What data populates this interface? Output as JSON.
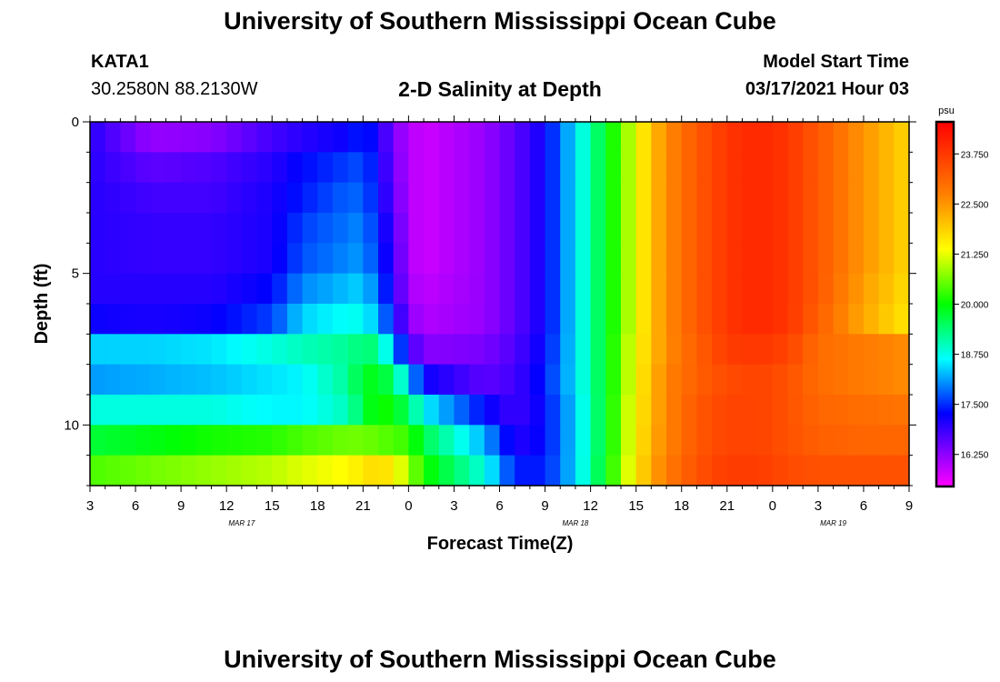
{
  "page": {
    "title_top": "University of Southern Mississippi Ocean Cube",
    "title_bottom": "University of Southern Mississippi Ocean Cube",
    "station_id": "KATA1",
    "station_coords": "30.2580N 88.2130W",
    "chart_title": "2-D Salinity at Depth",
    "model_start_label": "Model Start Time",
    "model_start_value": "03/17/2021 Hour 03"
  },
  "chart_data": {
    "type": "heatmap",
    "title": "2-D Salinity at Depth",
    "xlabel": "Forecast Time(Z)",
    "ylabel": "Depth (ft)",
    "x_ticks": [
      "3",
      "6",
      "9",
      "12",
      "15",
      "18",
      "21",
      "0",
      "3",
      "6",
      "9",
      "12",
      "15",
      "18",
      "21",
      "0",
      "3",
      "6",
      "9"
    ],
    "x_day_labels": [
      {
        "label": "MAR 17",
        "hour_index": 10
      },
      {
        "label": "MAR 18",
        "hour_index": 32
      },
      {
        "label": "MAR 19",
        "hour_index": 49
      }
    ],
    "x_hours_range": [
      0,
      54
    ],
    "y_ticks": [
      0,
      5,
      10
    ],
    "ylim": [
      0,
      12
    ],
    "colorbar": {
      "unit": "psu",
      "min": 15.45,
      "max": 24.55,
      "tick_values": [
        16.25,
        17.5,
        18.75,
        20.0,
        21.25,
        22.5,
        23.75
      ],
      "tick_labels": [
        "16.250",
        "17.500",
        "18.750",
        "20.000",
        "21.250",
        "22.500",
        "23.750"
      ]
    },
    "depth_levels_ft": [
      0.5,
      1.5,
      2.5,
      3.5,
      4.5,
      5.5,
      6.5,
      7.5,
      8.5,
      9.5,
      10.5,
      11.5
    ],
    "time_hours": [
      0,
      4,
      8,
      12,
      14,
      17,
      18,
      19,
      20,
      21,
      22,
      26,
      28,
      30,
      32,
      34,
      35,
      36,
      37,
      38,
      40,
      42,
      44,
      46,
      48,
      51,
      54
    ],
    "salinity_psu": [
      [
        17.0,
        16.2,
        16.3,
        16.8,
        17.0,
        17.2,
        17.5,
        17.1,
        16.4,
        16.0,
        15.8,
        16.2,
        16.6,
        17.2,
        18.5,
        19.8,
        20.5,
        21.3,
        22.0,
        22.6,
        23.3,
        23.8,
        24.0,
        23.8,
        23.3,
        22.5,
        21.8
      ],
      [
        17.0,
        16.6,
        16.7,
        17.0,
        17.3,
        17.6,
        17.7,
        17.2,
        16.5,
        16.0,
        15.8,
        16.2,
        16.6,
        17.2,
        18.5,
        19.8,
        20.5,
        21.3,
        22.0,
        22.6,
        23.3,
        23.8,
        24.0,
        23.8,
        23.3,
        22.5,
        21.8
      ],
      [
        17.0,
        16.8,
        16.8,
        17.1,
        17.4,
        17.8,
        17.8,
        17.3,
        16.6,
        16.0,
        15.8,
        16.2,
        16.6,
        17.2,
        18.5,
        19.8,
        20.5,
        21.3,
        22.0,
        22.6,
        23.3,
        23.8,
        24.0,
        23.8,
        23.3,
        22.5,
        21.8
      ],
      [
        17.0,
        16.9,
        16.9,
        17.1,
        17.6,
        17.9,
        18.0,
        17.4,
        16.8,
        16.0,
        15.8,
        16.2,
        16.6,
        17.2,
        18.5,
        19.8,
        20.5,
        21.3,
        22.0,
        22.6,
        23.3,
        23.8,
        24.0,
        23.8,
        23.3,
        22.5,
        21.8
      ],
      [
        17.0,
        16.9,
        16.9,
        17.1,
        17.7,
        18.0,
        18.1,
        17.5,
        16.9,
        16.0,
        15.8,
        16.2,
        16.6,
        17.2,
        18.5,
        19.8,
        20.5,
        21.3,
        22.0,
        22.6,
        23.3,
        23.8,
        24.0,
        23.8,
        23.3,
        22.5,
        21.8
      ],
      [
        17.0,
        17.0,
        17.0,
        17.3,
        18.0,
        18.3,
        18.4,
        17.8,
        17.0,
        16.1,
        15.9,
        16.2,
        16.6,
        17.2,
        18.5,
        19.8,
        20.5,
        21.3,
        22.0,
        22.6,
        23.3,
        23.8,
        24.0,
        23.8,
        23.3,
        22.4,
        21.7
      ],
      [
        17.2,
        17.1,
        17.2,
        17.6,
        18.4,
        18.7,
        18.7,
        18.2,
        17.3,
        16.3,
        16.0,
        16.2,
        16.6,
        17.2,
        18.5,
        19.8,
        20.5,
        21.3,
        22.0,
        22.6,
        23.3,
        23.8,
        24.0,
        23.8,
        23.2,
        22.3,
        21.6
      ],
      [
        18.4,
        18.4,
        18.5,
        18.8,
        19.0,
        19.2,
        19.4,
        19.3,
        18.2,
        16.9,
        16.3,
        16.4,
        16.7,
        17.3,
        18.5,
        19.8,
        20.6,
        21.4,
        22.0,
        22.6,
        23.2,
        23.7,
        23.8,
        23.6,
        23.0,
        22.8,
        22.6
      ],
      [
        18.1,
        18.2,
        18.3,
        18.5,
        18.6,
        19.2,
        19.8,
        19.9,
        19.4,
        18.4,
        17.2,
        16.6,
        16.8,
        17.4,
        18.5,
        19.8,
        20.6,
        21.4,
        22.1,
        22.7,
        23.2,
        23.5,
        23.6,
        23.4,
        23.0,
        22.8,
        22.6
      ],
      [
        18.8,
        18.8,
        18.8,
        18.6,
        18.6,
        19.0,
        19.6,
        20.2,
        19.9,
        19.5,
        18.6,
        17.3,
        16.8,
        17.3,
        18.4,
        19.8,
        20.7,
        21.5,
        22.1,
        22.7,
        23.3,
        23.6,
        23.6,
        23.4,
        23.1,
        23.0,
        22.9
      ],
      [
        19.7,
        19.9,
        20.1,
        20.2,
        20.4,
        20.6,
        20.6,
        20.5,
        20.4,
        20.3,
        19.6,
        18.2,
        17.0,
        17.3,
        18.4,
        19.8,
        20.7,
        21.5,
        22.2,
        22.7,
        23.3,
        23.6,
        23.6,
        23.4,
        23.2,
        23.1,
        23.1
      ],
      [
        20.4,
        20.6,
        20.8,
        21.0,
        21.2,
        21.4,
        21.6,
        21.8,
        21.5,
        20.9,
        20.1,
        18.8,
        17.4,
        17.4,
        18.4,
        19.9,
        20.8,
        21.6,
        22.3,
        22.8,
        23.4,
        23.7,
        23.7,
        23.5,
        23.4,
        23.4,
        23.4
      ]
    ]
  }
}
